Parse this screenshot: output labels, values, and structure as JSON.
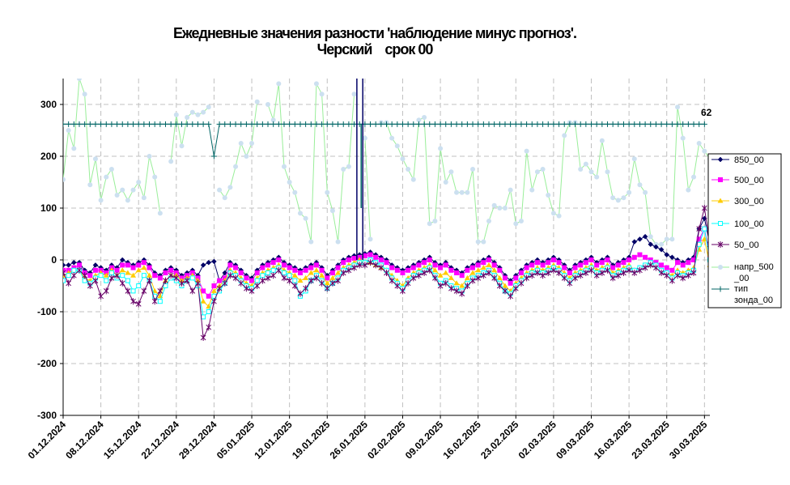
{
  "chart_data": {
    "type": "line",
    "title_line1": "Ежедневные значения разности 'наблюдение минус прогноз'.",
    "title_line2": "Черский    срок 00",
    "x_tick_labels": [
      "01.12.2024",
      "08.12.2024",
      "15.12.2024",
      "22.12.2024",
      "29.12.2024",
      "05.01.2025",
      "12.01.2025",
      "19.01.2025",
      "26.01.2025",
      "02.02.2025",
      "09.02.2025",
      "16.02.2025",
      "23.02.2025",
      "02.03.2025",
      "09.03.2025",
      "16.03.2025",
      "23.03.2025",
      "30.03.2025"
    ],
    "x_tick_days": [
      0,
      7,
      14,
      21,
      28,
      35,
      42,
      49,
      56,
      63,
      70,
      77,
      84,
      91,
      98,
      105,
      112,
      119
    ],
    "x_range_days": [
      0,
      120
    ],
    "y_ticks": [
      300,
      200,
      100,
      0,
      -100,
      -200,
      -300
    ],
    "ylim": [
      -300,
      350
    ],
    "grid": true,
    "annotation": "62",
    "legend_position": "right",
    "series": [
      {
        "name": "850_00",
        "color": "#000066",
        "marker": "diamond",
        "values": [
          -10,
          -10,
          -5,
          -5,
          -20,
          -25,
          -10,
          -15,
          -20,
          -10,
          -15,
          0,
          -5,
          -10,
          -5,
          0,
          -10,
          -25,
          -30,
          -20,
          -15,
          -20,
          -30,
          -25,
          -20,
          -30,
          -10,
          -5,
          -3,
          -40,
          -25,
          -5,
          -10,
          -20,
          -30,
          -35,
          -20,
          -10,
          -5,
          0,
          5,
          -5,
          -10,
          -15,
          -20,
          -15,
          -10,
          -5,
          -15,
          -30,
          -20,
          -10,
          0,
          5,
          8,
          10,
          12,
          15,
          10,
          5,
          0,
          -10,
          -15,
          -20,
          -15,
          -10,
          -5,
          0,
          5,
          -5,
          -10,
          -5,
          -15,
          -20,
          -25,
          -15,
          -10,
          -5,
          0,
          5,
          -5,
          -15,
          -30,
          -40,
          -30,
          -20,
          -10,
          -5,
          0,
          -5,
          0,
          5,
          0,
          -10,
          -20,
          -10,
          -5,
          0,
          5,
          -5,
          0,
          5,
          -10,
          -5,
          0,
          5,
          35,
          40,
          45,
          30,
          25,
          20,
          10,
          5,
          0,
          -5,
          0,
          5,
          60,
          80,
          30
        ]
      },
      {
        "name": "500_00",
        "color": "#ff00ff",
        "marker": "square",
        "values": [
          -20,
          -20,
          -15,
          -10,
          -25,
          -30,
          -20,
          -20,
          -25,
          -15,
          -20,
          -10,
          -10,
          -15,
          -10,
          -5,
          -15,
          -30,
          -35,
          -25,
          -20,
          -25,
          -35,
          -30,
          -25,
          -35,
          -60,
          -70,
          -50,
          -40,
          -35,
          -10,
          -15,
          -25,
          -35,
          -40,
          -25,
          -15,
          -10,
          -5,
          0,
          -10,
          -15,
          -20,
          -25,
          -20,
          -15,
          -10,
          -20,
          -35,
          -25,
          -15,
          -5,
          0,
          3,
          5,
          8,
          10,
          5,
          0,
          -5,
          -15,
          -20,
          -25,
          -20,
          -15,
          -10,
          -5,
          0,
          -10,
          -15,
          -10,
          -20,
          -25,
          -30,
          -20,
          -15,
          -10,
          -5,
          0,
          -10,
          -20,
          -35,
          -45,
          -35,
          -25,
          -15,
          -10,
          -5,
          -10,
          -5,
          0,
          -5,
          -15,
          -25,
          -15,
          -10,
          -5,
          0,
          -10,
          -5,
          0,
          -15,
          -10,
          -5,
          0,
          5,
          10,
          5,
          0,
          -5,
          -10,
          -15,
          -20,
          -5,
          -10,
          -5,
          0,
          40,
          60,
          10
        ]
      },
      {
        "name": "300_00",
        "color": "#ffcc00",
        "marker": "triangle",
        "values": [
          -30,
          -25,
          -20,
          -20,
          -35,
          -40,
          -30,
          -25,
          -30,
          -20,
          -30,
          -20,
          -25,
          -30,
          -20,
          -15,
          -30,
          -60,
          -70,
          -40,
          -30,
          -30,
          -40,
          -35,
          -30,
          -40,
          -80,
          -90,
          -60,
          -50,
          -40,
          -20,
          -25,
          -35,
          -45,
          -50,
          -35,
          -25,
          -20,
          -15,
          -10,
          -20,
          -25,
          -30,
          -40,
          -35,
          -25,
          -20,
          -30,
          -45,
          -35,
          -25,
          -15,
          -10,
          -5,
          0,
          -5,
          -5,
          -10,
          -15,
          -20,
          -30,
          -40,
          -50,
          -35,
          -25,
          -20,
          -15,
          -10,
          -20,
          -30,
          -25,
          -35,
          -45,
          -50,
          -35,
          -25,
          -20,
          -15,
          -10,
          -20,
          -35,
          -50,
          -60,
          -45,
          -35,
          -25,
          -20,
          -15,
          -20,
          -15,
          -10,
          -15,
          -25,
          -35,
          -25,
          -20,
          -15,
          -10,
          -20,
          -15,
          -10,
          -25,
          -20,
          -15,
          -10,
          -20,
          -15,
          -10,
          -5,
          -10,
          -20,
          -25,
          -30,
          -20,
          -25,
          -20,
          -15,
          20,
          40,
          -10
        ]
      },
      {
        "name": "100_00",
        "color": "#00ffff",
        "marker": "square-open",
        "values": [
          -40,
          -30,
          -20,
          -20,
          -40,
          -45,
          -35,
          -30,
          -40,
          -25,
          -35,
          -30,
          -40,
          -60,
          -50,
          -30,
          -40,
          -70,
          -80,
          -50,
          -35,
          -40,
          -50,
          -40,
          -35,
          -50,
          -110,
          -100,
          -70,
          -60,
          -45,
          -25,
          -30,
          -40,
          -50,
          -55,
          -40,
          -30,
          -25,
          -20,
          -15,
          -25,
          -30,
          -40,
          -70,
          -60,
          -40,
          -30,
          -40,
          -55,
          -45,
          -35,
          -20,
          -15,
          -10,
          -5,
          -5,
          0,
          -5,
          -10,
          -20,
          -35,
          -45,
          -55,
          -40,
          -30,
          -25,
          -20,
          -15,
          -30,
          -45,
          -40,
          -50,
          -55,
          -60,
          -45,
          -35,
          -30,
          -25,
          -20,
          -30,
          -45,
          -60,
          -65,
          -50,
          -40,
          -30,
          -25,
          -20,
          -25,
          -20,
          -15,
          -20,
          -30,
          -40,
          -30,
          -25,
          -20,
          -15,
          -25,
          -20,
          -15,
          -30,
          -25,
          -20,
          -15,
          -20,
          -15,
          -10,
          -5,
          -10,
          -20,
          -25,
          -35,
          -25,
          -30,
          -25,
          -20,
          30,
          60,
          0
        ]
      },
      {
        "name": "50_00",
        "color": "#660066",
        "marker": "star",
        "values": [
          -25,
          -45,
          -30,
          -20,
          -30,
          -50,
          -40,
          -70,
          -60,
          -35,
          -30,
          -45,
          -60,
          -80,
          -85,
          -60,
          -40,
          -80,
          -60,
          -40,
          -30,
          -35,
          -45,
          -40,
          -60,
          -45,
          -150,
          -130,
          -80,
          -55,
          -45,
          -30,
          -35,
          -45,
          -55,
          -60,
          -50,
          -40,
          -35,
          -30,
          -20,
          -35,
          -40,
          -50,
          -65,
          -55,
          -40,
          -35,
          -45,
          -55,
          -45,
          -40,
          -25,
          -20,
          -15,
          -10,
          -10,
          -5,
          -10,
          -15,
          -25,
          -40,
          -50,
          -60,
          -45,
          -35,
          -30,
          -25,
          -20,
          -35,
          -50,
          -45,
          -55,
          -60,
          -65,
          -50,
          -40,
          -35,
          -30,
          -25,
          -35,
          -50,
          -60,
          -70,
          -55,
          -45,
          -35,
          -30,
          -25,
          -30,
          -25,
          -20,
          -25,
          -35,
          -45,
          -35,
          -30,
          -25,
          -20,
          -30,
          -25,
          -20,
          -35,
          -30,
          -25,
          -20,
          -25,
          -20,
          -15,
          -10,
          -15,
          -25,
          -30,
          -40,
          -30,
          -35,
          -30,
          -25,
          60,
          100,
          30
        ]
      },
      {
        "name": "напр_500_00",
        "color": "#cce0f0",
        "line_color": "#99ee99",
        "marker": "circle",
        "values": [
          155,
          250,
          215,
          350,
          320,
          145,
          195,
          115,
          160,
          175,
          125,
          135,
          115,
          135,
          150,
          120,
          200,
          160,
          90,
          null,
          190,
          280,
          220,
          275,
          285,
          280,
          285,
          295,
          null,
          135,
          120,
          140,
          180,
          225,
          200,
          225,
          305,
          null,
          300,
          270,
          340,
          180,
          150,
          130,
          90,
          80,
          35,
          340,
          320,
          130,
          95,
          35,
          175,
          180,
          320,
          null,
          235,
          40,
          null,
          265,
          265,
          235,
          220,
          195,
          175,
          155,
          270,
          275,
          70,
          75,
          215,
          150,
          170,
          130,
          130,
          130,
          175,
          35,
          35,
          75,
          105,
          100,
          100,
          135,
          70,
          75,
          210,
          135,
          170,
          175,
          125,
          90,
          85,
          240,
          265,
          265,
          175,
          185,
          170,
          160,
          230,
          170,
          120,
          115,
          120,
          130,
          195,
          145,
          130,
          45,
          30,
          30,
          40,
          40,
          295,
          235,
          135,
          160,
          225,
          210,
          195
        ]
      },
      {
        "name": "тип зонда_00",
        "color": "#006666",
        "marker": "plus",
        "values": [
          262,
          262,
          262,
          262,
          262,
          262,
          262,
          262,
          262,
          262,
          262,
          262,
          262,
          262,
          262,
          262,
          262,
          262,
          262,
          262,
          262,
          262,
          262,
          262,
          262,
          262,
          262,
          262,
          200,
          262,
          262,
          262,
          262,
          262,
          262,
          262,
          262,
          262,
          262,
          262,
          262,
          262,
          262,
          262,
          262,
          262,
          262,
          262,
          262,
          262,
          262,
          262,
          262,
          262,
          262,
          262,
          262,
          262,
          262,
          262,
          262,
          262,
          262,
          262,
          262,
          262,
          262,
          262,
          262,
          262,
          262,
          262,
          262,
          262,
          262,
          262,
          262,
          262,
          262,
          262,
          262,
          262,
          262,
          262,
          262,
          262,
          262,
          262,
          262,
          262,
          262,
          262,
          262,
          262,
          262,
          262,
          262,
          262,
          262,
          262,
          262,
          262,
          262,
          262,
          262,
          262,
          262,
          262,
          262,
          262,
          262,
          262,
          262,
          262,
          262,
          262,
          262,
          262,
          262,
          262
        ]
      }
    ],
    "spikes": [
      {
        "series": "850_00",
        "day": 54.5,
        "from": 0,
        "to": 350
      },
      {
        "series": "850_00",
        "day": 55.6,
        "from": 0,
        "to": 350
      },
      {
        "series": "тип зонда_00",
        "day": 55.3,
        "from": 262,
        "to": 100
      }
    ]
  }
}
